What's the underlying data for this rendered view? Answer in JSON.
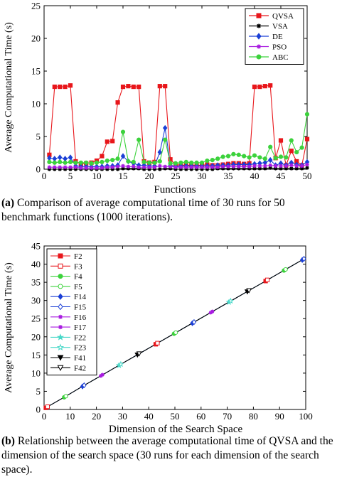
{
  "captions": {
    "a_label": "(a)",
    "a_text": "Comparison of average computational time of 30 runs for 50 benchmark functions (1000 iterations).",
    "b_label": "(b)",
    "b_text": "Relationship between the average computational time of QVSA and the dimension of the search space (30 runs for each dimension of the search space)."
  },
  "chart_data": [
    {
      "type": "line",
      "xlabel": "Functions",
      "ylabel": "Average Computational Time (s)",
      "xlim": [
        0,
        50
      ],
      "ylim": [
        0,
        25
      ],
      "xticks": [
        "0",
        "5",
        "10",
        "15",
        "20",
        "25",
        "30",
        "35",
        "40",
        "45",
        "50"
      ],
      "yticks": [
        "0",
        "5",
        "10",
        "15",
        "20",
        "25"
      ],
      "grid": false,
      "legend": "top-right",
      "x": [
        1,
        2,
        3,
        4,
        5,
        6,
        7,
        8,
        9,
        10,
        11,
        12,
        13,
        14,
        15,
        16,
        17,
        18,
        19,
        20,
        21,
        22,
        23,
        24,
        25,
        26,
        27,
        28,
        29,
        30,
        31,
        32,
        33,
        34,
        35,
        36,
        37,
        38,
        39,
        40,
        41,
        42,
        43,
        44,
        45,
        46,
        47,
        48,
        49,
        50
      ],
      "series": [
        {
          "name": "QVSA",
          "color": "#e8161b",
          "marker": "square",
          "values": [
            2.2,
            12.6,
            12.6,
            12.6,
            12.8,
            1.2,
            0.8,
            0.9,
            1.0,
            1.3,
            2.0,
            4.2,
            4.3,
            10.2,
            12.6,
            12.7,
            12.6,
            12.6,
            1.2,
            1.0,
            1.1,
            12.7,
            12.7,
            1.5,
            0.7,
            0.6,
            0.6,
            0.6,
            0.6,
            0.6,
            0.7,
            0.6,
            0.6,
            0.7,
            0.8,
            0.9,
            0.9,
            0.8,
            0.9,
            12.6,
            12.6,
            12.7,
            12.8,
            1.7,
            4.4,
            0.6,
            2.8,
            1.2,
            0.6,
            4.6
          ]
        },
        {
          "name": "VSA",
          "color": "#000000",
          "marker": "star",
          "values": [
            0.0,
            0.0,
            0.0,
            0.0,
            0.0,
            0.0,
            0.0,
            0.0,
            0.0,
            0.0,
            0.0,
            0.0,
            0.0,
            0.0,
            0.1,
            0.1,
            0.1,
            0.1,
            0.0,
            0.0,
            0.0,
            0.0,
            0.1,
            0.1,
            0.0,
            0.0,
            0.0,
            0.0,
            0.0,
            0.0,
            0.0,
            0.0,
            0.1,
            0.1,
            0.1,
            0.1,
            0.1,
            0.1,
            0.1,
            0.1,
            0.1,
            0.1,
            0.2,
            0.1,
            0.1,
            0.1,
            0.1,
            0.1,
            0.1,
            0.2
          ]
        },
        {
          "name": "DE",
          "color": "#1b3fd6",
          "marker": "diamond",
          "values": [
            1.7,
            1.6,
            1.8,
            1.6,
            1.8,
            0.5,
            0.4,
            0.4,
            0.4,
            0.4,
            0.4,
            0.5,
            0.5,
            0.6,
            2.0,
            1.2,
            0.9,
            0.6,
            0.6,
            0.5,
            0.5,
            2.6,
            6.3,
            0.6,
            0.4,
            0.5,
            0.5,
            0.5,
            0.5,
            0.5,
            0.5,
            0.5,
            0.6,
            0.6,
            0.6,
            0.7,
            0.7,
            0.7,
            0.7,
            0.8,
            0.9,
            1.0,
            1.4,
            0.6,
            0.9,
            0.6,
            1.0,
            0.7,
            0.6,
            1.1
          ]
        },
        {
          "name": "PSO",
          "color": "#a81be0",
          "marker": "star",
          "values": [
            0.3,
            0.3,
            0.3,
            0.3,
            0.3,
            0.3,
            0.2,
            0.2,
            0.2,
            0.2,
            0.2,
            0.3,
            0.3,
            0.4,
            0.5,
            0.4,
            0.4,
            0.3,
            0.3,
            0.3,
            0.3,
            0.5,
            0.4,
            0.4,
            0.3,
            0.3,
            0.3,
            0.3,
            0.3,
            0.3,
            0.3,
            0.3,
            0.3,
            0.4,
            0.4,
            0.4,
            0.4,
            0.4,
            0.4,
            0.5,
            0.5,
            0.5,
            0.6,
            0.5,
            0.5,
            0.5,
            0.6,
            0.5,
            0.5,
            0.7
          ]
        },
        {
          "name": "ABC",
          "color": "#3cd23c",
          "marker": "circle",
          "values": [
            1.1,
            1.0,
            1.1,
            1.0,
            1.1,
            1.0,
            1.0,
            1.0,
            0.9,
            1.0,
            1.1,
            1.3,
            1.4,
            1.6,
            5.7,
            1.2,
            1.1,
            4.5,
            1.1,
            1.0,
            1.0,
            1.2,
            4.5,
            0.9,
            0.9,
            1.0,
            1.1,
            1.0,
            1.0,
            1.0,
            1.3,
            1.4,
            1.6,
            1.9,
            2.0,
            2.3,
            2.2,
            2.0,
            1.8,
            2.1,
            1.8,
            1.6,
            3.4,
            1.7,
            1.9,
            1.8,
            4.4,
            2.6,
            3.3,
            8.4
          ]
        }
      ]
    },
    {
      "type": "line",
      "xlabel": "Dimension of the Search Space",
      "ylabel": "Average Computational Time (s)",
      "xlim": [
        0,
        100
      ],
      "ylim": [
        0,
        45
      ],
      "xticks": [
        "0",
        "10",
        "20",
        "30",
        "40",
        "50",
        "60",
        "70",
        "80",
        "90",
        "100"
      ],
      "yticks": [
        "0",
        "5",
        "10",
        "15",
        "20",
        "25",
        "30",
        "35",
        "40",
        "45"
      ],
      "grid": false,
      "legend": "top-left",
      "series": [
        {
          "name": "F2",
          "color": "#e8161b",
          "marker": "square-filled"
        },
        {
          "name": "F3",
          "color": "#e8161b",
          "marker": "square-open"
        },
        {
          "name": "F4",
          "color": "#3cd23c",
          "marker": "circle-filled"
        },
        {
          "name": "F5",
          "color": "#3cd23c",
          "marker": "circle-open"
        },
        {
          "name": "F14",
          "color": "#1b3fd6",
          "marker": "diamond-filled"
        },
        {
          "name": "F15",
          "color": "#1b3fd6",
          "marker": "diamond-open"
        },
        {
          "name": "F16",
          "color": "#a81be0",
          "marker": "star"
        },
        {
          "name": "F17",
          "color": "#a81be0",
          "marker": "star-open"
        },
        {
          "name": "F22",
          "color": "#48d8c8",
          "marker": "pentagram-filled"
        },
        {
          "name": "F23",
          "color": "#48d8c8",
          "marker": "pentagram-open"
        },
        {
          "name": "F41",
          "color": "#000000",
          "marker": "triangle-down-filled"
        },
        {
          "name": "F42",
          "color": "#000000",
          "marker": "triangle-down-open"
        }
      ],
      "x": [
        1,
        8,
        15,
        22,
        29,
        36,
        43,
        50,
        57,
        64,
        71,
        78,
        85,
        92,
        99
      ],
      "y": [
        0.6,
        3.5,
        6.5,
        9.4,
        12.3,
        15.2,
        18.1,
        21.0,
        23.9,
        26.8,
        29.7,
        32.6,
        35.5,
        38.4,
        41.3
      ]
    }
  ]
}
